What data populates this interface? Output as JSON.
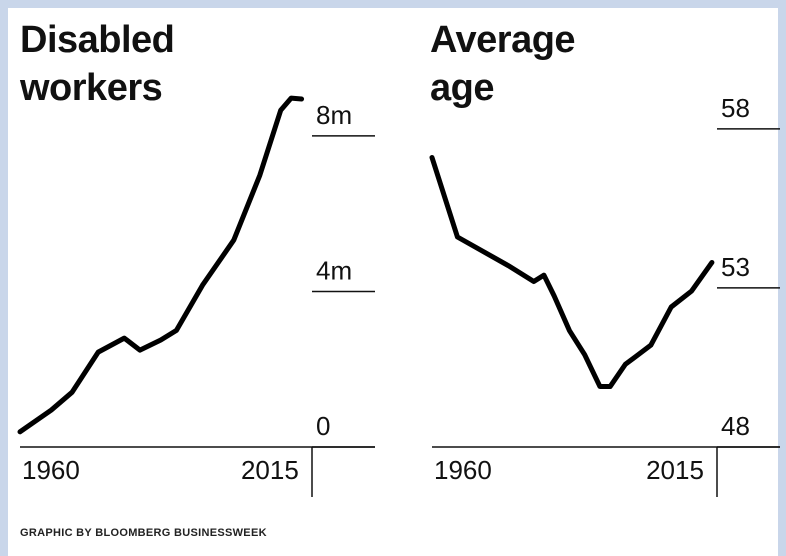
{
  "chart_data": [
    {
      "type": "line",
      "title": "Disabled workers",
      "x": [
        1960,
        1966,
        1970,
        1975,
        1980,
        1983,
        1987,
        1990,
        1995,
        2001,
        2006,
        2010,
        2012,
        2014
      ],
      "values": [
        0.39,
        0.95,
        1.41,
        2.44,
        2.8,
        2.49,
        2.75,
        3.0,
        4.16,
        5.32,
        6.99,
        8.66,
        8.97,
        8.95
      ],
      "color": "#000000",
      "xlim": [
        1960,
        2016
      ],
      "ylim": [
        0,
        9
      ],
      "xticks": [
        1960,
        2015
      ],
      "yticks": [
        0,
        {
          "value": 4,
          "label": "4m"
        },
        {
          "value": 8,
          "label": "8m"
        }
      ]
    },
    {
      "type": "line",
      "title": "Average age",
      "x": [
        1960,
        1965,
        1975,
        1980,
        1982,
        1984,
        1987,
        1990,
        1993,
        1995,
        1998,
        2003,
        2007,
        2011,
        2015
      ],
      "values": [
        57.1,
        54.6,
        53.7,
        53.2,
        53.4,
        52.75,
        51.66,
        50.9,
        49.9,
        49.9,
        50.6,
        51.2,
        52.4,
        52.9,
        53.8
      ],
      "color": "#000000",
      "xlim": [
        1960,
        2016
      ],
      "ylim": [
        48,
        59
      ],
      "xticks": [
        1960,
        2015
      ],
      "yticks": [
        48,
        53,
        58
      ]
    }
  ],
  "credit": "GRAPHIC BY BLOOMBERG BUSINESSWEEK"
}
